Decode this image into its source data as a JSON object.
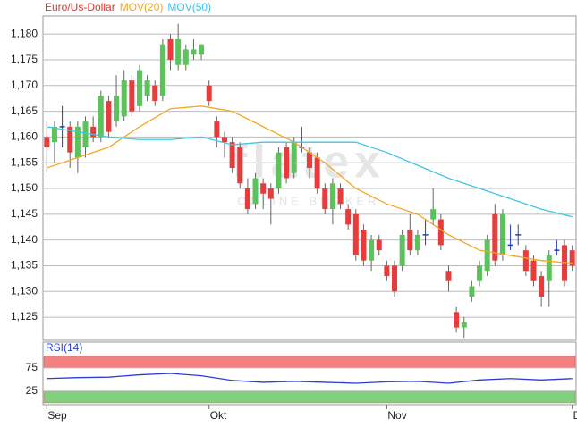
{
  "chart_data": [
    {
      "type": "candlestick",
      "candles": {
        "name": "Euro/Us-Dollar",
        "color": "#e2352c",
        "open": [
          1.16,
          1.159,
          1.162,
          1.162,
          1.156,
          1.158,
          1.162,
          1.16,
          1.167,
          1.163,
          1.164,
          1.171,
          1.166,
          1.168,
          1.17,
          1.168,
          1.179,
          1.174,
          1.174,
          1.176,
          1.176,
          1.17,
          1.163,
          1.16,
          1.159,
          1.158,
          1.15,
          1.147,
          1.151,
          1.15,
          1.15,
          1.158,
          1.153,
          1.158,
          1.157,
          1.156,
          1.15,
          1.146,
          1.15,
          1.146,
          1.145,
          1.142,
          1.136,
          1.14,
          1.135,
          1.135,
          1.135,
          1.142,
          1.138,
          1.141,
          1.144,
          1.144,
          1.134,
          1.126,
          1.123,
          1.129,
          1.132,
          1.134,
          1.145,
          1.137,
          1.139,
          1.141,
          1.138,
          1.136,
          1.133,
          1.132,
          1.138,
          1.139,
          1.138
        ],
        "high": [
          1.163,
          1.163,
          1.166,
          1.163,
          1.163,
          1.164,
          1.164,
          1.169,
          1.168,
          1.172,
          1.173,
          1.172,
          1.174,
          1.172,
          1.171,
          1.179,
          1.18,
          1.182,
          1.178,
          1.179,
          1.178,
          1.171,
          1.164,
          1.161,
          1.16,
          1.159,
          1.152,
          1.153,
          1.152,
          1.151,
          1.158,
          1.159,
          1.16,
          1.162,
          1.158,
          1.157,
          1.151,
          1.152,
          1.151,
          1.147,
          1.146,
          1.143,
          1.141,
          1.141,
          1.136,
          1.136,
          1.142,
          1.145,
          1.142,
          1.144,
          1.15,
          1.145,
          1.135,
          1.127,
          1.125,
          1.132,
          1.136,
          1.141,
          1.147,
          1.146,
          1.143,
          1.143,
          1.139,
          1.137,
          1.134,
          1.138,
          1.14,
          1.14,
          1.139
        ],
        "low": [
          1.153,
          1.155,
          1.158,
          1.154,
          1.153,
          1.156,
          1.159,
          1.159,
          1.16,
          1.162,
          1.163,
          1.164,
          1.165,
          1.167,
          1.166,
          1.167,
          1.173,
          1.173,
          1.173,
          1.175,
          1.175,
          1.166,
          1.158,
          1.156,
          1.153,
          1.15,
          1.145,
          1.146,
          1.146,
          1.143,
          1.149,
          1.151,
          1.152,
          1.157,
          1.152,
          1.149,
          1.145,
          1.143,
          1.146,
          1.142,
          1.136,
          1.135,
          1.134,
          1.137,
          1.132,
          1.129,
          1.134,
          1.137,
          1.137,
          1.139,
          1.143,
          1.138,
          1.13,
          1.122,
          1.121,
          1.128,
          1.131,
          1.133,
          1.135,
          1.136,
          1.138,
          1.139,
          1.133,
          1.131,
          1.127,
          1.127,
          1.137,
          1.131,
          1.134
        ],
        "close": [
          1.158,
          1.162,
          1.162,
          1.157,
          1.162,
          1.163,
          1.16,
          1.168,
          1.161,
          1.168,
          1.171,
          1.165,
          1.173,
          1.171,
          1.167,
          1.178,
          1.175,
          1.179,
          1.177,
          1.177,
          1.178,
          1.167,
          1.16,
          1.159,
          1.154,
          1.151,
          1.146,
          1.152,
          1.149,
          1.148,
          1.157,
          1.152,
          1.159,
          1.158,
          1.154,
          1.15,
          1.146,
          1.151,
          1.147,
          1.143,
          1.137,
          1.136,
          1.14,
          1.138,
          1.133,
          1.13,
          1.141,
          1.138,
          1.141,
          1.141,
          1.146,
          1.139,
          1.132,
          1.123,
          1.124,
          1.131,
          1.135,
          1.14,
          1.136,
          1.145,
          1.139,
          1.141,
          1.134,
          1.132,
          1.129,
          1.137,
          1.138,
          1.132,
          1.135
        ]
      },
      "up_color": "#5cc25c",
      "down_color": "#e83b3b",
      "flat_color": "#2a3fb0",
      "series": [
        {
          "name": "MOV(20)",
          "color": "#f5a623",
          "x": [
            0,
            4,
            8,
            12,
            16,
            20,
            24,
            28,
            32,
            36,
            40,
            44,
            48,
            52,
            56,
            60,
            64,
            68
          ],
          "values": [
            1.154,
            1.156,
            1.158,
            1.162,
            1.1655,
            1.166,
            1.165,
            1.162,
            1.159,
            1.155,
            1.15,
            1.147,
            1.145,
            1.141,
            1.138,
            1.137,
            1.136,
            1.1355
          ]
        },
        {
          "name": "MOV(50)",
          "color": "#3ec6e6",
          "x": [
            0,
            4,
            8,
            12,
            16,
            20,
            24,
            28,
            32,
            36,
            40,
            44,
            48,
            52,
            56,
            60,
            64,
            68
          ],
          "values": [
            1.162,
            1.161,
            1.16,
            1.1595,
            1.1595,
            1.16,
            1.1585,
            1.159,
            1.159,
            1.159,
            1.159,
            1.157,
            1.1545,
            1.152,
            1.15,
            1.148,
            1.146,
            1.1445
          ]
        }
      ],
      "watermark": "flatex",
      "watermark_sub": "ONLINE BROKER",
      "xlim": [
        -0.5,
        68.5
      ],
      "xticks": [
        {
          "value": 0,
          "label": "Sep"
        },
        {
          "value": 21,
          "label": "Okt"
        },
        {
          "value": 44,
          "label": "Nov"
        },
        {
          "value": 68,
          "label": "D"
        }
      ],
      "ylim": [
        1.1205,
        1.1835
      ],
      "yticks": [
        {
          "value": 1.125,
          "label": "1,125"
        },
        {
          "value": 1.13,
          "label": "1,130"
        },
        {
          "value": 1.135,
          "label": "1,135"
        },
        {
          "value": 1.14,
          "label": "1,140"
        },
        {
          "value": 1.145,
          "label": "1,145"
        },
        {
          "value": 1.15,
          "label": "1,150"
        },
        {
          "value": 1.155,
          "label": "1,155"
        },
        {
          "value": 1.16,
          "label": "1,160"
        },
        {
          "value": 1.165,
          "label": "1,165"
        },
        {
          "value": 1.17,
          "label": "1,170"
        },
        {
          "value": 1.175,
          "label": "1,175"
        },
        {
          "value": 1.18,
          "label": "1,180"
        }
      ],
      "grid": true
    },
    {
      "type": "line",
      "series": [
        {
          "name": "RSI(14)",
          "color": "#2a3fd0",
          "x": [
            0,
            4,
            8,
            12,
            16,
            20,
            24,
            28,
            32,
            36,
            40,
            44,
            48,
            52,
            56,
            60,
            64,
            68
          ],
          "values": [
            52,
            54,
            55,
            60,
            63,
            58,
            48,
            44,
            46,
            44,
            42,
            45,
            46,
            42,
            49,
            52,
            49,
            52
          ]
        }
      ],
      "bands": [
        {
          "from": 75,
          "to": 100,
          "color": "#f28080"
        },
        {
          "from": 0,
          "to": 25,
          "color": "#80d080"
        }
      ],
      "ylim": [
        -4,
        130
      ],
      "yticks": [
        25,
        75
      ],
      "grid": true
    }
  ]
}
